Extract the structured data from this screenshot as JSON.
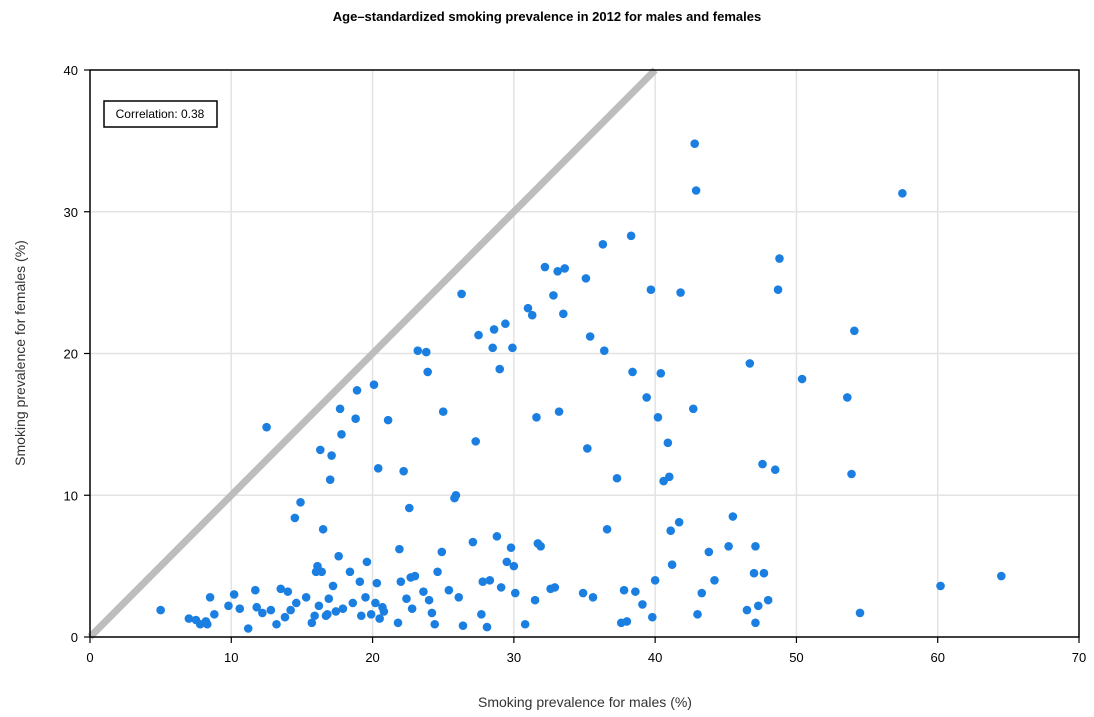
{
  "chart_data": {
    "type": "scatter",
    "title": "Age–standardized smoking prevalence in 2012 for males and females",
    "xlabel": "Smoking prevalence for males (%)",
    "ylabel": "Smoking prevalence for females (%)",
    "xlim": [
      0,
      70
    ],
    "ylim": [
      0,
      40
    ],
    "xticks": [
      "0",
      "10",
      "20",
      "30",
      "40",
      "50",
      "60",
      "70"
    ],
    "yticks": [
      "0",
      "10",
      "20",
      "30",
      "40"
    ],
    "grid": true,
    "reference_line": "y = x",
    "annotation": "Correlation: 0.38",
    "annotation_placement": "top-left",
    "colors": {
      "points": "#1a7fe0",
      "reference_line": "#bdbdbd",
      "grid": "#e3e3e3"
    },
    "points": [
      [
        5.0,
        1.9
      ],
      [
        7.0,
        1.3
      ],
      [
        7.5,
        1.2
      ],
      [
        7.8,
        0.9
      ],
      [
        8.2,
        1.1
      ],
      [
        8.3,
        0.9
      ],
      [
        8.5,
        2.8
      ],
      [
        8.8,
        1.6
      ],
      [
        9.8,
        2.2
      ],
      [
        10.2,
        3.0
      ],
      [
        10.6,
        2.0
      ],
      [
        11.2,
        0.6
      ],
      [
        11.7,
        3.3
      ],
      [
        11.8,
        2.1
      ],
      [
        12.2,
        1.7
      ],
      [
        12.5,
        14.8
      ],
      [
        12.8,
        1.9
      ],
      [
        13.2,
        0.9
      ],
      [
        13.5,
        3.4
      ],
      [
        13.8,
        1.4
      ],
      [
        14.0,
        3.2
      ],
      [
        14.2,
        1.9
      ],
      [
        14.5,
        8.4
      ],
      [
        14.6,
        2.4
      ],
      [
        14.9,
        9.5
      ],
      [
        15.3,
        2.8
      ],
      [
        15.7,
        1.0
      ],
      [
        15.9,
        1.5
      ],
      [
        16.0,
        4.6
      ],
      [
        16.1,
        5.0
      ],
      [
        16.2,
        2.2
      ],
      [
        16.3,
        13.2
      ],
      [
        16.4,
        4.6
      ],
      [
        16.5,
        7.6
      ],
      [
        16.7,
        1.5
      ],
      [
        16.8,
        1.6
      ],
      [
        16.9,
        2.7
      ],
      [
        17.0,
        11.1
      ],
      [
        17.1,
        12.8
      ],
      [
        17.2,
        3.6
      ],
      [
        17.4,
        1.8
      ],
      [
        17.6,
        5.7
      ],
      [
        17.7,
        16.1
      ],
      [
        17.8,
        14.3
      ],
      [
        17.9,
        2.0
      ],
      [
        18.4,
        4.6
      ],
      [
        18.6,
        2.4
      ],
      [
        18.8,
        15.4
      ],
      [
        18.9,
        17.4
      ],
      [
        19.1,
        3.9
      ],
      [
        19.2,
        1.5
      ],
      [
        19.5,
        2.8
      ],
      [
        19.6,
        5.3
      ],
      [
        19.9,
        1.6
      ],
      [
        20.1,
        17.8
      ],
      [
        20.2,
        2.4
      ],
      [
        20.3,
        3.8
      ],
      [
        20.4,
        11.9
      ],
      [
        20.5,
        1.3
      ],
      [
        20.7,
        2.1
      ],
      [
        20.8,
        1.8
      ],
      [
        21.1,
        15.3
      ],
      [
        21.8,
        1.0
      ],
      [
        21.9,
        6.2
      ],
      [
        22.0,
        3.9
      ],
      [
        22.2,
        11.7
      ],
      [
        22.4,
        2.7
      ],
      [
        22.6,
        9.1
      ],
      [
        22.7,
        4.2
      ],
      [
        22.8,
        2.0
      ],
      [
        23.0,
        4.3
      ],
      [
        23.2,
        20.2
      ],
      [
        23.6,
        3.2
      ],
      [
        23.8,
        20.1
      ],
      [
        23.9,
        18.7
      ],
      [
        24.0,
        2.6
      ],
      [
        24.2,
        1.7
      ],
      [
        24.4,
        0.9
      ],
      [
        24.6,
        4.6
      ],
      [
        24.9,
        6.0
      ],
      [
        25.0,
        15.9
      ],
      [
        25.4,
        3.3
      ],
      [
        25.8,
        9.8
      ],
      [
        25.9,
        10.0
      ],
      [
        26.1,
        2.8
      ],
      [
        26.3,
        24.2
      ],
      [
        26.4,
        0.8
      ],
      [
        27.1,
        6.7
      ],
      [
        27.3,
        13.8
      ],
      [
        27.5,
        21.3
      ],
      [
        27.7,
        1.6
      ],
      [
        27.8,
        3.9
      ],
      [
        28.1,
        0.7
      ],
      [
        28.3,
        4.0
      ],
      [
        28.5,
        20.4
      ],
      [
        28.6,
        21.7
      ],
      [
        28.8,
        7.1
      ],
      [
        29.0,
        18.9
      ],
      [
        29.1,
        3.5
      ],
      [
        29.4,
        22.1
      ],
      [
        29.5,
        5.3
      ],
      [
        29.8,
        6.3
      ],
      [
        29.9,
        20.4
      ],
      [
        30.0,
        5.0
      ],
      [
        30.1,
        3.1
      ],
      [
        30.8,
        0.9
      ],
      [
        31.0,
        23.2
      ],
      [
        31.3,
        22.7
      ],
      [
        31.5,
        2.6
      ],
      [
        31.6,
        15.5
      ],
      [
        31.7,
        6.6
      ],
      [
        31.9,
        6.4
      ],
      [
        32.2,
        26.1
      ],
      [
        32.6,
        3.4
      ],
      [
        32.8,
        24.1
      ],
      [
        32.9,
        3.5
      ],
      [
        33.1,
        25.8
      ],
      [
        33.2,
        15.9
      ],
      [
        33.5,
        22.8
      ],
      [
        33.6,
        26.0
      ],
      [
        34.9,
        3.1
      ],
      [
        35.1,
        25.3
      ],
      [
        35.2,
        13.3
      ],
      [
        35.4,
        21.2
      ],
      [
        35.6,
        2.8
      ],
      [
        36.3,
        27.7
      ],
      [
        36.4,
        20.2
      ],
      [
        36.6,
        7.6
      ],
      [
        37.3,
        11.2
      ],
      [
        37.6,
        1.0
      ],
      [
        37.8,
        3.3
      ],
      [
        38.0,
        1.1
      ],
      [
        38.3,
        28.3
      ],
      [
        38.4,
        18.7
      ],
      [
        38.6,
        3.2
      ],
      [
        39.1,
        2.3
      ],
      [
        39.4,
        16.9
      ],
      [
        39.7,
        24.5
      ],
      [
        39.8,
        1.4
      ],
      [
        40.0,
        4.0
      ],
      [
        40.2,
        15.5
      ],
      [
        40.4,
        18.6
      ],
      [
        40.6,
        11.0
      ],
      [
        40.9,
        13.7
      ],
      [
        41.0,
        11.3
      ],
      [
        41.1,
        7.5
      ],
      [
        41.2,
        5.1
      ],
      [
        41.7,
        8.1
      ],
      [
        41.8,
        24.3
      ],
      [
        42.7,
        16.1
      ],
      [
        42.8,
        34.8
      ],
      [
        42.9,
        31.5
      ],
      [
        43.0,
        1.6
      ],
      [
        43.3,
        3.1
      ],
      [
        43.8,
        6.0
      ],
      [
        44.2,
        4.0
      ],
      [
        45.2,
        6.4
      ],
      [
        45.5,
        8.5
      ],
      [
        46.5,
        1.9
      ],
      [
        46.7,
        19.3
      ],
      [
        47.0,
        4.5
      ],
      [
        47.1,
        6.4
      ],
      [
        47.1,
        1.0
      ],
      [
        47.3,
        2.2
      ],
      [
        47.6,
        12.2
      ],
      [
        47.7,
        4.5
      ],
      [
        48.0,
        2.6
      ],
      [
        48.5,
        11.8
      ],
      [
        48.7,
        24.5
      ],
      [
        48.8,
        26.7
      ],
      [
        50.4,
        18.2
      ],
      [
        53.6,
        16.9
      ],
      [
        53.9,
        11.5
      ],
      [
        54.1,
        21.6
      ],
      [
        54.5,
        1.7
      ],
      [
        57.5,
        31.3
      ],
      [
        60.2,
        3.6
      ],
      [
        64.5,
        4.3
      ]
    ]
  }
}
